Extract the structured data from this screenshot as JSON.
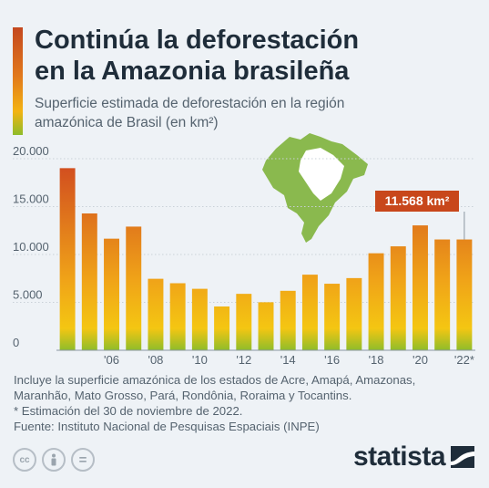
{
  "header": {
    "title_line1": "Continúa la deforestación",
    "title_line2": "en la Amazonia brasileña",
    "subtitle_line1": "Superficie estimada de deforestación en la región",
    "subtitle_line2": "amazónica de Brasil (en km²)"
  },
  "colors": {
    "bar_top": "#d24f1f",
    "bar_mid": "#f0a418",
    "bar_bottom": "#8fbd2a",
    "callout": "#c8471b",
    "map": "#8ab94e"
  },
  "chart_data": {
    "type": "bar",
    "title": "Continúa la deforestación en la Amazonia brasileña",
    "subtitle": "Superficie estimada de deforestación en la región amazónica de Brasil (en km²)",
    "years": [
      2004,
      2005,
      2006,
      2007,
      2008,
      2009,
      2010,
      2011,
      2012,
      2013,
      2014,
      2015,
      2016,
      2017,
      2018,
      2019,
      2020,
      2021,
      2022
    ],
    "values": [
      19014,
      14286,
      11651,
      12911,
      7464,
      7000,
      6418,
      4571,
      5891,
      5012,
      6207,
      7893,
      6947,
      7536,
      10129,
      10851,
      13038,
      11568,
      11568
    ],
    "x_tick_labels": [
      "'06",
      "'08",
      "'10",
      "'12",
      "'14",
      "'16",
      "'18",
      "'20",
      "'22*"
    ],
    "y_tick_labels": [
      "0",
      "5.000",
      "10.000",
      "15.000",
      "20.000"
    ],
    "ylim": [
      0,
      20000
    ],
    "grid": true,
    "annotation": {
      "text": "11.568 km²",
      "year": 2022
    }
  },
  "notes": {
    "line1": "Incluye la superficie amazónica de los estados de Acre, Amapá, Amazonas,",
    "line2": "Maranhão, Mato Grosso, Pará, Rondônia, Roraima y Tocantins.",
    "line3": "* Estimación del 30 de noviembre de 2022.",
    "source": "Fuente: Instituto Nacional de Pesquisas Espaciais (INPE)"
  },
  "license_icons": [
    "cc-icon",
    "person-icon",
    "equals-icon"
  ],
  "license_labels": {
    "cc": "cc",
    "eq": "="
  },
  "brand": {
    "name": "statista"
  }
}
